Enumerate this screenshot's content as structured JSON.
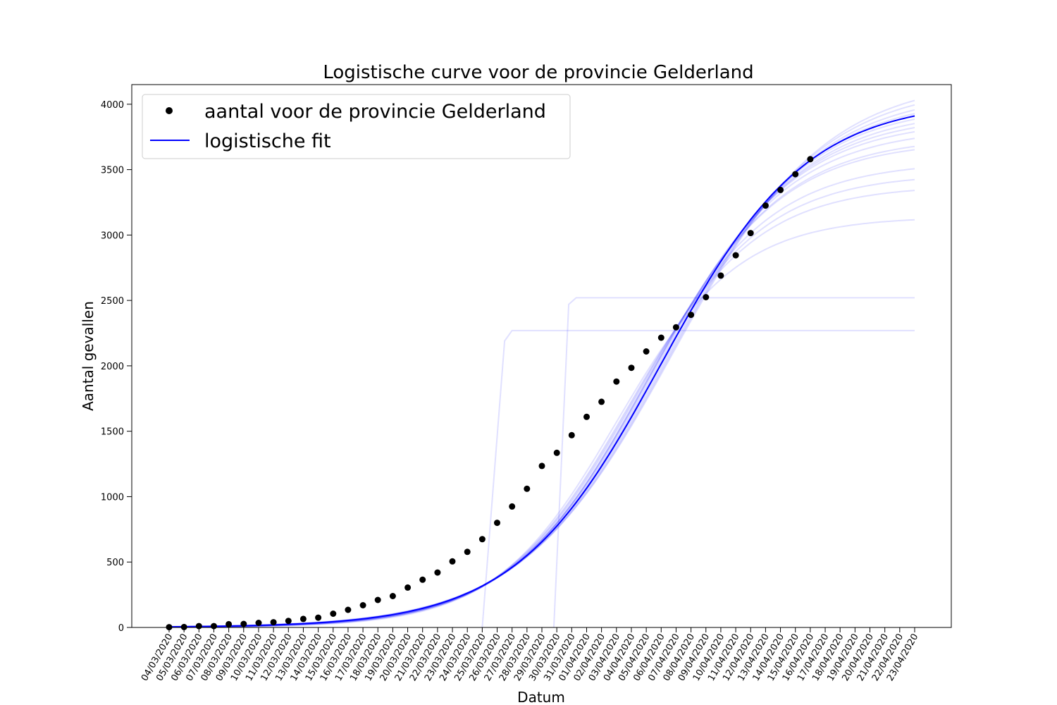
{
  "chart_data": {
    "type": "scatter",
    "title": "Logistische curve voor de provincie Gelderland",
    "xlabel": "Datum",
    "ylabel": "Aantal gevallen",
    "categories": [
      "04/03/2020",
      "05/03/2020",
      "06/03/2020",
      "07/03/2020",
      "08/03/2020",
      "09/03/2020",
      "10/03/2020",
      "11/03/2020",
      "12/03/2020",
      "13/03/2020",
      "14/03/2020",
      "15/03/2020",
      "16/03/2020",
      "17/03/2020",
      "18/03/2020",
      "19/03/2020",
      "20/03/2020",
      "21/03/2020",
      "22/03/2020",
      "23/03/2020",
      "24/03/2020",
      "25/03/2020",
      "26/03/2020",
      "27/03/2020",
      "28/03/2020",
      "29/03/2020",
      "30/03/2020",
      "31/03/2020",
      "01/04/2020",
      "02/04/2020",
      "03/04/2020",
      "04/04/2020",
      "05/04/2020",
      "06/04/2020",
      "07/04/2020",
      "08/04/2020",
      "09/04/2020",
      "10/04/2020",
      "11/04/2020",
      "12/04/2020",
      "13/04/2020",
      "14/04/2020",
      "15/04/2020",
      "16/04/2020",
      "17/04/2020",
      "18/04/2020",
      "19/04/2020",
      "20/04/2020",
      "21/04/2020",
      "22/04/2020",
      "23/04/2020"
    ],
    "ylim": [
      0,
      4150
    ],
    "yticks": [
      0,
      500,
      1000,
      1500,
      2000,
      2500,
      3000,
      3500,
      4000
    ],
    "grid": false,
    "legend_position": "top-left",
    "series": [
      {
        "name": "aantal voor de provincie Gelderland",
        "kind": "scatter",
        "color": "#000000",
        "values": [
          2,
          3,
          10,
          10,
          25,
          27,
          35,
          40,
          50,
          65,
          75,
          105,
          135,
          170,
          210,
          240,
          305,
          365,
          420,
          505,
          578,
          675,
          800,
          925,
          1060,
          1235,
          1335,
          1470,
          1610,
          1725,
          1880,
          1985,
          2110,
          2215,
          2295,
          2390,
          2525,
          2690,
          2845,
          3015,
          3225,
          3345,
          3465,
          3580
        ]
      },
      {
        "name": "logistische fit",
        "kind": "line",
        "color": "#0000ff",
        "model": "logistic",
        "K": 4030,
        "r": 0.205,
        "t0": 33
      }
    ],
    "sample_fits": {
      "color": "#0000ff",
      "logistic": [
        {
          "K": 4200,
          "r": 0.195,
          "t0": 33.8
        },
        {
          "K": 4150,
          "r": 0.198,
          "t0": 33.6
        },
        {
          "K": 4100,
          "r": 0.2,
          "t0": 33.4
        },
        {
          "K": 4060,
          "r": 0.202,
          "t0": 33.2
        },
        {
          "K": 4000,
          "r": 0.206,
          "t0": 32.9
        },
        {
          "K": 3960,
          "r": 0.208,
          "t0": 32.8
        },
        {
          "K": 3920,
          "r": 0.21,
          "t0": 32.6
        },
        {
          "K": 3880,
          "r": 0.212,
          "t0": 32.4
        },
        {
          "K": 3820,
          "r": 0.215,
          "t0": 32.2
        },
        {
          "K": 3750,
          "r": 0.218,
          "t0": 32.0
        },
        {
          "K": 3720,
          "r": 0.22,
          "t0": 31.9
        },
        {
          "K": 3560,
          "r": 0.225,
          "t0": 31.4
        },
        {
          "K": 3470,
          "r": 0.228,
          "t0": 31.1
        },
        {
          "K": 3380,
          "r": 0.232,
          "t0": 30.8
        },
        {
          "K": 3140,
          "r": 0.245,
          "t0": 30.0
        }
      ],
      "steps": [
        {
          "from": 21,
          "to": 22.5,
          "y0": 0,
          "y1": 2190,
          "plateau": 2270
        },
        {
          "from": 25.8,
          "to": 26.8,
          "y0": 0,
          "y1": 2470,
          "plateau": 2520
        }
      ]
    }
  }
}
